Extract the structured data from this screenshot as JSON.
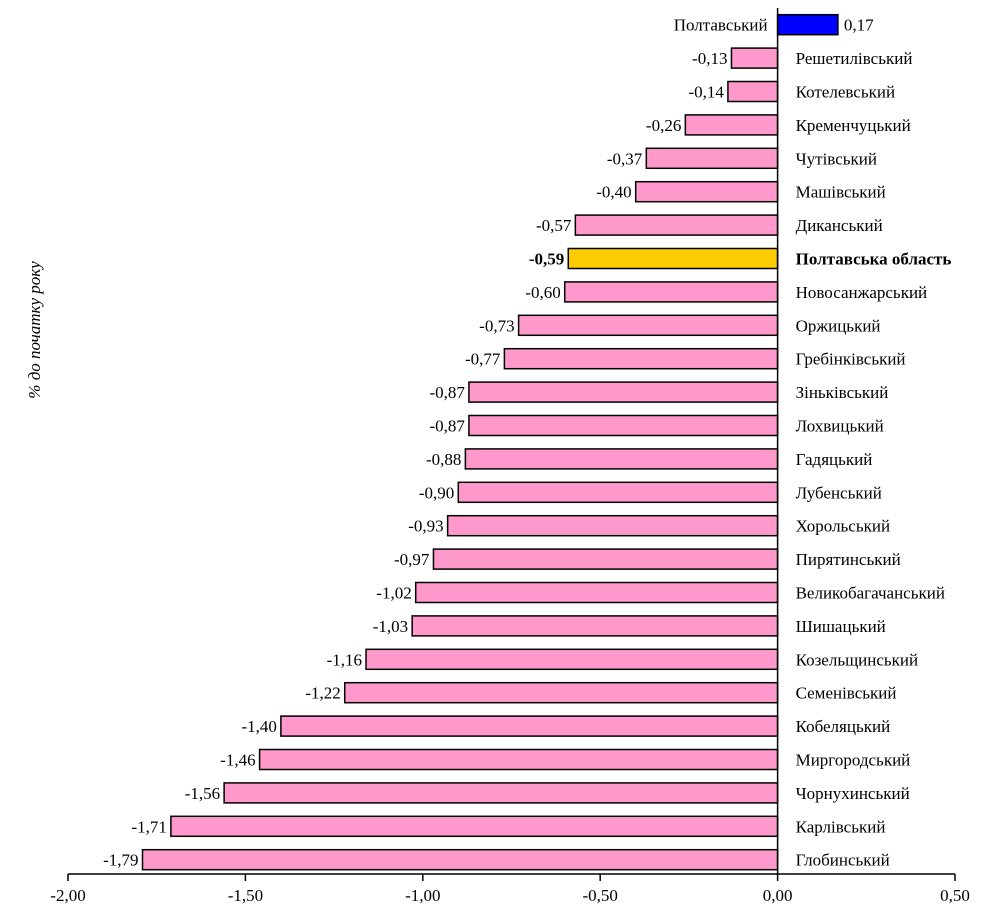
{
  "chart_data": {
    "type": "bar",
    "orientation": "horizontal",
    "ylabel": "% до початку року",
    "xlim": [
      -2.0,
      0.5
    ],
    "xticks": [
      -2.0,
      -1.5,
      -1.0,
      -0.5,
      0.0,
      0.5
    ],
    "xtick_labels": [
      "-2,00",
      "-1,50",
      "-1,00",
      "-0,50",
      "0,00",
      "0,50"
    ],
    "grid": false,
    "highlight_category": "Полтавська область",
    "colors": {
      "positive": "#0000ff",
      "negative": "#ff99cc",
      "highlight": "#ffcc00",
      "outline": "#000000"
    },
    "bars": [
      {
        "category": "Полтавський",
        "value": 0.17,
        "label": "0,17"
      },
      {
        "category": "Решетилівський",
        "value": -0.13,
        "label": "-0,13"
      },
      {
        "category": "Котелевський",
        "value": -0.14,
        "label": "-0,14"
      },
      {
        "category": "Кременчуцький",
        "value": -0.26,
        "label": "-0,26"
      },
      {
        "category": "Чутівський",
        "value": -0.37,
        "label": "-0,37"
      },
      {
        "category": "Машівський",
        "value": -0.4,
        "label": "-0,40"
      },
      {
        "category": "Диканський",
        "value": -0.57,
        "label": "-0,57"
      },
      {
        "category": "Полтавська область",
        "value": -0.59,
        "label": "-0,59"
      },
      {
        "category": "Новосанжарський",
        "value": -0.6,
        "label": "-0,60"
      },
      {
        "category": "Оржицький",
        "value": -0.73,
        "label": "-0,73"
      },
      {
        "category": "Гребінківський",
        "value": -0.77,
        "label": "-0,77"
      },
      {
        "category": "Зіньківський",
        "value": -0.87,
        "label": "-0,87"
      },
      {
        "category": "Лохвицький",
        "value": -0.87,
        "label": "-0,87"
      },
      {
        "category": "Гадяцький",
        "value": -0.88,
        "label": "-0,88"
      },
      {
        "category": "Лубенський",
        "value": -0.9,
        "label": "-0,90"
      },
      {
        "category": "Хорольський",
        "value": -0.93,
        "label": "-0,93"
      },
      {
        "category": "Пирятинський",
        "value": -0.97,
        "label": "-0,97"
      },
      {
        "category": "Великобагачанський",
        "value": -1.02,
        "label": "-1,02"
      },
      {
        "category": "Шишацький",
        "value": -1.03,
        "label": "-1,03"
      },
      {
        "category": "Козельщинський",
        "value": -1.16,
        "label": "-1,16"
      },
      {
        "category": "Семенівський",
        "value": -1.22,
        "label": "-1,22"
      },
      {
        "category": "Кобеляцький",
        "value": -1.4,
        "label": "-1,40"
      },
      {
        "category": "Миргородський",
        "value": -1.46,
        "label": "-1,46"
      },
      {
        "category": "Чорнухинський",
        "value": -1.56,
        "label": "-1,56"
      },
      {
        "category": "Карлівський",
        "value": -1.71,
        "label": "-1,71"
      },
      {
        "category": "Глобинський",
        "value": -1.79,
        "label": "-1,79"
      }
    ]
  }
}
